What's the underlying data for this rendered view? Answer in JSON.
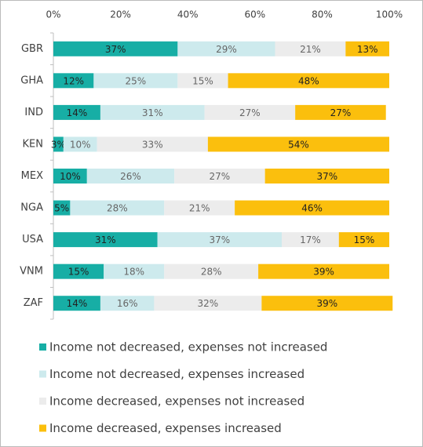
{
  "chart_data": {
    "type": "stacked-bar-horizontal",
    "categories": [
      "GBR",
      "GHA",
      "IND",
      "KEN",
      "MEX",
      "NGA",
      "USA",
      "VNM",
      "ZAF"
    ],
    "series": [
      {
        "name": "Income not decreased, expenses not increased",
        "color": "#17aea5",
        "values": [
          37,
          12,
          14,
          3,
          10,
          5,
          31,
          15,
          14
        ],
        "value_labels": [
          "37%",
          "12%",
          "14%",
          "3%",
          "10%",
          "5%",
          "31%",
          "15%",
          "14%"
        ]
      },
      {
        "name": "Income not decreased, expenses increased",
        "color": "#cdeaed",
        "values": [
          29,
          25,
          31,
          10,
          26,
          28,
          37,
          18,
          16
        ],
        "value_labels": [
          "29%",
          "25%",
          "31%",
          "10%",
          "26%",
          "28%",
          "37%",
          "18%",
          "16%"
        ]
      },
      {
        "name": "Income decreased, expenses not increased",
        "color": "#ececec",
        "values": [
          21,
          15,
          27,
          33,
          27,
          21,
          17,
          28,
          32
        ],
        "value_labels": [
          "21%",
          "15%",
          "27%",
          "33%",
          "27%",
          "21%",
          "17%",
          "28%",
          "32%"
        ]
      },
      {
        "name": "Income decreased, expenses increased",
        "color": "#fbbf0d",
        "values": [
          13,
          48,
          27,
          54,
          37,
          46,
          15,
          39,
          39
        ],
        "value_labels": [
          "13%",
          "48%",
          "27%",
          "54%",
          "37%",
          "46%",
          "15%",
          "39%",
          "39%"
        ]
      }
    ],
    "xlim": [
      0,
      100
    ],
    "xticks": [
      {
        "value": 0,
        "label": "0%"
      },
      {
        "value": 20,
        "label": "20%"
      },
      {
        "value": 40,
        "label": "40%"
      },
      {
        "value": 60,
        "label": "60%"
      },
      {
        "value": 80,
        "label": "80%"
      },
      {
        "value": 100,
        "label": "100%"
      }
    ]
  }
}
